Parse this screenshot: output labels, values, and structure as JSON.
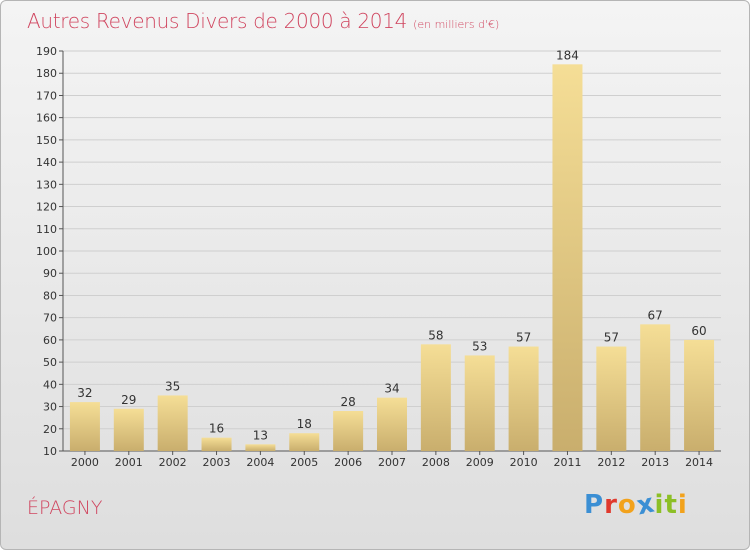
{
  "header": {
    "title": "Autres Revenus Divers de 2000 à 2014",
    "unit": "(en milliers d'€)"
  },
  "footer": {
    "commune": "ÉPAGNY",
    "logo_letters": [
      {
        "char": "P",
        "color": "#3b8fd4"
      },
      {
        "char": "r",
        "color": "#e0392d"
      },
      {
        "char": "o",
        "color": "#f2a21c"
      },
      {
        "char": "x",
        "color": "#3b8fd4"
      },
      {
        "char": "i",
        "color": "#8cbf26"
      },
      {
        "char": "t",
        "color": "#8cbf26"
      },
      {
        "char": "i",
        "color": "#f2a21c"
      }
    ]
  },
  "colors": {
    "title": "#d0455f",
    "bar_light": "#f5de96",
    "bar_dark": "#c9ae6d",
    "grid": "#cfcfcf"
  },
  "chart_data": {
    "type": "bar",
    "title": "Autres Revenus Divers de 2000 à 2014",
    "subtitle": "(en milliers d'€)",
    "xlabel": "",
    "ylabel": "",
    "categories": [
      "2000",
      "2001",
      "2002",
      "2003",
      "2004",
      "2005",
      "2006",
      "2007",
      "2008",
      "2009",
      "2010",
      "2011",
      "2012",
      "2013",
      "2014"
    ],
    "values": [
      32,
      29,
      35,
      16,
      13,
      18,
      28,
      34,
      58,
      53,
      57,
      184,
      57,
      67,
      60
    ],
    "ylim": [
      10,
      190
    ],
    "yticks": [
      10,
      20,
      30,
      40,
      50,
      60,
      70,
      80,
      90,
      100,
      110,
      120,
      130,
      140,
      150,
      160,
      170,
      180,
      190
    ],
    "grid": true,
    "data_labels": true
  }
}
